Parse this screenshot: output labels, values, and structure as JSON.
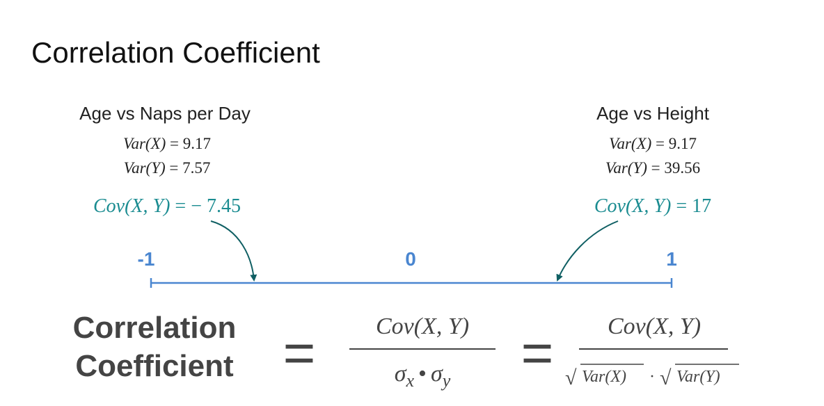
{
  "title": "Correlation Coefficient",
  "left": {
    "heading": "Age vs Naps per Day",
    "var_x": {
      "expr": "Var(X)",
      "rest": "= 9.17"
    },
    "var_y": {
      "expr": "Var(Y)",
      "rest": "= 7.57"
    },
    "cov": {
      "expr": "Cov(X, Y)",
      "rest": "= − 7.45"
    }
  },
  "right": {
    "heading": "Age vs Height",
    "var_x": {
      "expr": "Var(X)",
      "rest": "= 9.17"
    },
    "var_y": {
      "expr": "Var(Y)",
      "rest": "= 39.56"
    },
    "cov": {
      "expr": "Cov(X, Y)",
      "rest": "= 17"
    }
  },
  "scale": {
    "min": "-1",
    "mid": "0",
    "max": "1"
  },
  "formula": {
    "lhs_line1": "Correlation",
    "lhs_line2": "Coefficient",
    "equals": "=",
    "numerator": "Cov(X, Y)",
    "sigma": "σ",
    "sub_x": "x",
    "sub_y": "y",
    "bullet": "•",
    "sqrt": "√",
    "var_x": "Var(X)",
    "var_y": "Var(Y)",
    "cdot": "·"
  }
}
